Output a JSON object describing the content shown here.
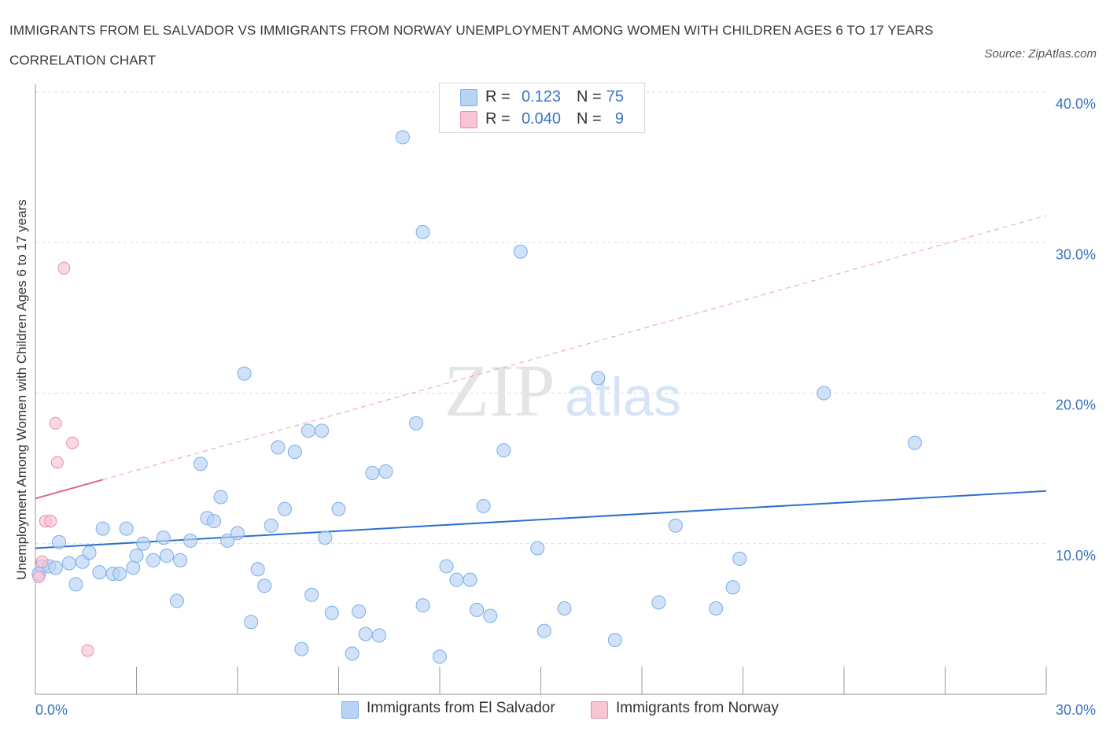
{
  "title": "IMMIGRANTS FROM EL SALVADOR VS IMMIGRANTS FROM NORWAY UNEMPLOYMENT AMONG WOMEN WITH CHILDREN AGES 6 TO 17 YEARS CORRELATION CHART",
  "source": "Source: ZipAtlas.com",
  "watermark": {
    "zip": "ZIP",
    "atlas": "atlas"
  },
  "legend": {
    "rows": [
      {
        "r_label": "R =",
        "r_value": "0.123",
        "n_label": "N =",
        "n_value": "75",
        "color": "#b9d3f5"
      },
      {
        "r_label": "R =",
        "r_value": "0.040",
        "n_label": "N =",
        "n_value": "9",
        "color": "#f8c5d5"
      }
    ]
  },
  "bottom_legend": {
    "items": [
      {
        "label": "Immigrants from El Salvador",
        "color": "#b9d3f5"
      },
      {
        "label": "Immigrants from Norway",
        "color": "#f8c5d5"
      }
    ]
  },
  "chart_data": {
    "type": "scatter",
    "title": "IMMIGRANTS FROM EL SALVADOR VS IMMIGRANTS FROM NORWAY UNEMPLOYMENT AMONG WOMEN WITH CHILDREN AGES 6 TO 17 YEARS CORRELATION CHART",
    "xlabel": "",
    "ylabel": "Unemployment Among Women with Children Ages 6 to 17 years",
    "xlim": [
      0,
      30
    ],
    "ylim": [
      0,
      40
    ],
    "x_tick_labels": [
      "0.0%",
      "30.0%"
    ],
    "y_tick_labels": [
      "10.0%",
      "20.0%",
      "30.0%",
      "40.0%"
    ],
    "y_ticks": [
      10,
      20,
      30,
      40
    ],
    "grid": true,
    "legend_position": "top-center",
    "series": [
      {
        "name": "Immigrants from El Salvador",
        "color": "#7aaee8",
        "fill": "#b9d3f5",
        "points": [
          [
            0.2,
            8.5
          ],
          [
            0.4,
            8.5
          ],
          [
            0.6,
            8.4
          ],
          [
            0.7,
            10.1
          ],
          [
            1.0,
            8.7
          ],
          [
            1.2,
            7.3
          ],
          [
            1.4,
            8.8
          ],
          [
            1.6,
            9.4
          ],
          [
            1.9,
            8.1
          ],
          [
            2.0,
            11.0
          ],
          [
            2.3,
            8.0
          ],
          [
            2.5,
            8.0
          ],
          [
            2.7,
            11.0
          ],
          [
            2.9,
            8.4
          ],
          [
            3.0,
            9.2
          ],
          [
            3.2,
            10.0
          ],
          [
            3.5,
            8.9
          ],
          [
            3.8,
            10.4
          ],
          [
            3.9,
            9.2
          ],
          [
            4.2,
            6.2
          ],
          [
            4.3,
            8.9
          ],
          [
            4.6,
            10.2
          ],
          [
            4.9,
            15.3
          ],
          [
            5.1,
            11.7
          ],
          [
            5.3,
            11.5
          ],
          [
            5.5,
            13.1
          ],
          [
            5.7,
            10.2
          ],
          [
            6.0,
            10.7
          ],
          [
            6.2,
            21.3
          ],
          [
            6.4,
            4.8
          ],
          [
            6.6,
            8.3
          ],
          [
            6.8,
            7.2
          ],
          [
            7.0,
            11.2
          ],
          [
            7.2,
            16.4
          ],
          [
            7.4,
            12.3
          ],
          [
            7.7,
            16.1
          ],
          [
            7.9,
            3.0
          ],
          [
            8.1,
            17.5
          ],
          [
            8.2,
            6.6
          ],
          [
            8.5,
            17.5
          ],
          [
            8.6,
            10.4
          ],
          [
            8.8,
            5.4
          ],
          [
            9.0,
            12.3
          ],
          [
            9.4,
            2.7
          ],
          [
            9.6,
            5.5
          ],
          [
            9.8,
            4.0
          ],
          [
            10.0,
            14.7
          ],
          [
            10.2,
            3.9
          ],
          [
            10.4,
            14.8
          ],
          [
            10.9,
            37.0
          ],
          [
            11.3,
            18.0
          ],
          [
            11.5,
            5.9
          ],
          [
            11.5,
            30.7
          ],
          [
            12.0,
            2.5
          ],
          [
            12.2,
            8.5
          ],
          [
            12.5,
            7.6
          ],
          [
            12.9,
            7.6
          ],
          [
            13.1,
            5.6
          ],
          [
            13.3,
            12.5
          ],
          [
            13.5,
            5.2
          ],
          [
            13.9,
            16.2
          ],
          [
            14.4,
            29.4
          ],
          [
            14.9,
            9.7
          ],
          [
            15.1,
            4.2
          ],
          [
            15.7,
            5.7
          ],
          [
            16.7,
            21.0
          ],
          [
            17.2,
            3.6
          ],
          [
            18.5,
            6.1
          ],
          [
            19.0,
            11.2
          ],
          [
            20.2,
            5.7
          ],
          [
            20.7,
            7.1
          ],
          [
            20.9,
            9.0
          ],
          [
            23.4,
            20.0
          ],
          [
            26.1,
            16.7
          ],
          [
            0.1,
            8.0
          ]
        ],
        "trend": {
          "x": [
            0,
            30
          ],
          "y": [
            9.7,
            13.5
          ],
          "style": "solid"
        }
      },
      {
        "name": "Immigrants from Norway",
        "color": "#e98ca8",
        "fill": "#f8c5d5",
        "points": [
          [
            0.1,
            7.8
          ],
          [
            0.2,
            8.8
          ],
          [
            0.3,
            11.5
          ],
          [
            0.45,
            11.5
          ],
          [
            0.6,
            18.0
          ],
          [
            0.65,
            15.4
          ],
          [
            0.85,
            28.3
          ],
          [
            1.1,
            16.7
          ],
          [
            1.55,
            2.9
          ]
        ],
        "trend": {
          "x": [
            0,
            30
          ],
          "y": [
            13.0,
            31.8
          ],
          "solid_until": 2.0,
          "style": "solid-then-dashed"
        }
      }
    ]
  }
}
